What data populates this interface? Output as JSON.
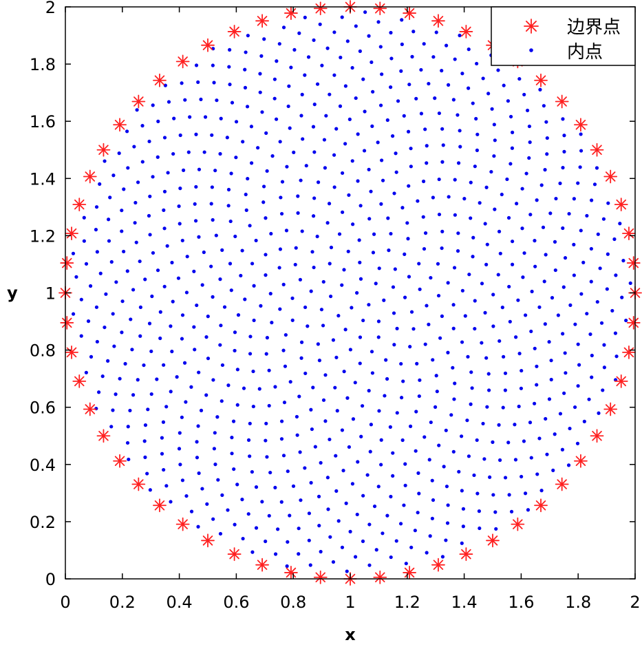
{
  "chart_data": {
    "type": "scatter",
    "title": "",
    "xlabel": "x",
    "ylabel": "y",
    "xlim": [
      0,
      2
    ],
    "ylim": [
      0,
      2
    ],
    "xticks": [
      "0",
      "0.2",
      "0.4",
      "0.6",
      "0.8",
      "1",
      "1.2",
      "1.4",
      "1.6",
      "1.8",
      "2"
    ],
    "yticks": [
      "0",
      "0.2",
      "0.4",
      "0.6",
      "0.8",
      "1",
      "1.2",
      "1.4",
      "1.6",
      "1.8",
      "2"
    ],
    "grid": false,
    "legend_placement": "top-right",
    "series": [
      {
        "name": "边界点",
        "marker": "asterisk",
        "color": "#ff2020",
        "generator": "circle_boundary",
        "center": [
          1,
          1
        ],
        "radius": 1,
        "count": 60
      },
      {
        "name": "内点",
        "marker": "dot",
        "color": "#0000ee",
        "generator": "sunflower_fill",
        "center": [
          1,
          1
        ],
        "radius": 0.985,
        "count": 900
      }
    ]
  }
}
